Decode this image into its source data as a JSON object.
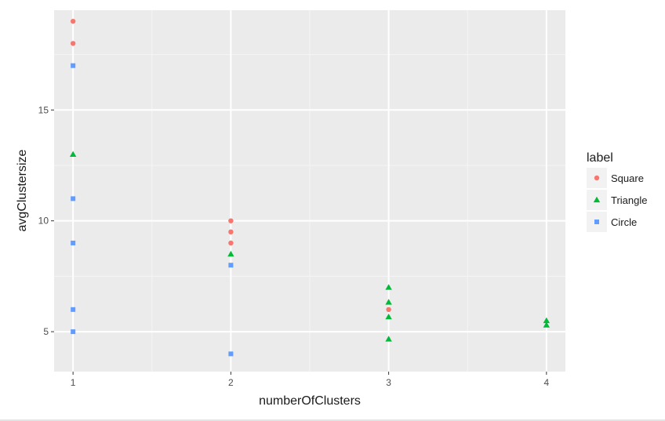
{
  "chart_data": {
    "type": "scatter",
    "xlabel": "numberOfClusters",
    "ylabel": "avgClustersize",
    "xlim": [
      0.88,
      4.12
    ],
    "ylim": [
      3.2,
      19.5
    ],
    "x_ticks": [
      1,
      2,
      3,
      4
    ],
    "y_ticks": [
      5,
      10,
      15
    ],
    "x_minor": [
      1.5,
      2.5,
      3.5
    ],
    "y_minor": [
      7.5,
      12.5,
      17.5
    ],
    "grid": true,
    "legend": {
      "title": "label",
      "position": "right"
    },
    "series": [
      {
        "name": "Square",
        "shape": "circle",
        "color": "#F8766D",
        "points": [
          [
            1,
            19
          ],
          [
            1,
            18
          ],
          [
            2,
            10
          ],
          [
            2,
            9.5
          ],
          [
            2,
            9
          ],
          [
            3,
            6
          ]
        ]
      },
      {
        "name": "Triangle",
        "shape": "triangle",
        "color": "#00BA38",
        "points": [
          [
            1,
            13
          ],
          [
            2,
            8.5
          ],
          [
            3,
            7
          ],
          [
            3,
            6.33
          ],
          [
            3,
            5.67
          ],
          [
            3,
            4.67
          ],
          [
            4,
            5.5
          ],
          [
            4,
            5.3
          ]
        ]
      },
      {
        "name": "Circle",
        "shape": "square",
        "color": "#619CFF",
        "points": [
          [
            1,
            17
          ],
          [
            1,
            11
          ],
          [
            1,
            9
          ],
          [
            1,
            6
          ],
          [
            1,
            5
          ],
          [
            2,
            8
          ],
          [
            2,
            4
          ]
        ]
      }
    ]
  }
}
